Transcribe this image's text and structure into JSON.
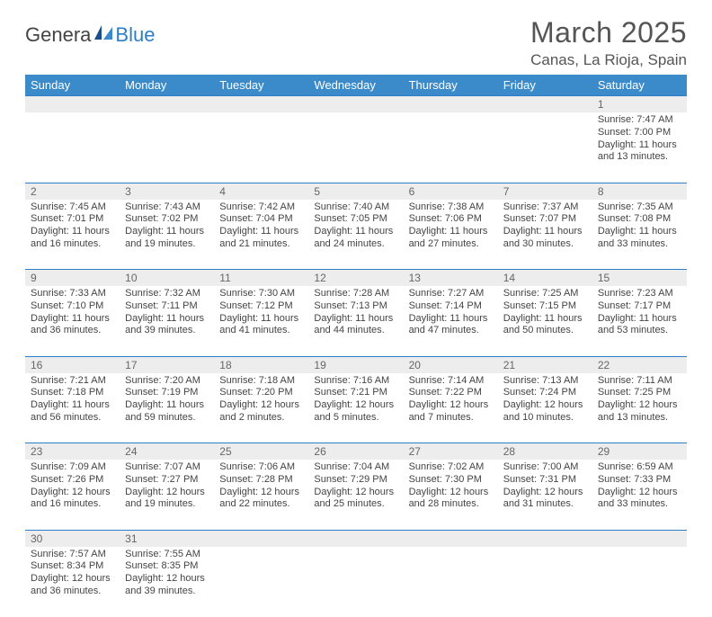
{
  "logo": {
    "part1": "Genera",
    "part2": "Blue"
  },
  "title": "March 2025",
  "subtitle": "Canas, La Rioja, Spain",
  "weekdays": [
    "Sunday",
    "Monday",
    "Tuesday",
    "Wednesday",
    "Thursday",
    "Friday",
    "Saturday"
  ],
  "colors": {
    "header_bg": "#3b8bca",
    "header_text": "#ffffff",
    "daynum_bg": "#ededed",
    "border": "#2d7ec4",
    "text": "#444444",
    "logo_blue": "#2d7ec4"
  },
  "weeks": [
    {
      "days": [
        {
          "num": "",
          "sunrise": "",
          "sunset": "",
          "daylight": ""
        },
        {
          "num": "",
          "sunrise": "",
          "sunset": "",
          "daylight": ""
        },
        {
          "num": "",
          "sunrise": "",
          "sunset": "",
          "daylight": ""
        },
        {
          "num": "",
          "sunrise": "",
          "sunset": "",
          "daylight": ""
        },
        {
          "num": "",
          "sunrise": "",
          "sunset": "",
          "daylight": ""
        },
        {
          "num": "",
          "sunrise": "",
          "sunset": "",
          "daylight": ""
        },
        {
          "num": "1",
          "sunrise": "Sunrise: 7:47 AM",
          "sunset": "Sunset: 7:00 PM",
          "daylight": "Daylight: 11 hours and 13 minutes."
        }
      ]
    },
    {
      "days": [
        {
          "num": "2",
          "sunrise": "Sunrise: 7:45 AM",
          "sunset": "Sunset: 7:01 PM",
          "daylight": "Daylight: 11 hours and 16 minutes."
        },
        {
          "num": "3",
          "sunrise": "Sunrise: 7:43 AM",
          "sunset": "Sunset: 7:02 PM",
          "daylight": "Daylight: 11 hours and 19 minutes."
        },
        {
          "num": "4",
          "sunrise": "Sunrise: 7:42 AM",
          "sunset": "Sunset: 7:04 PM",
          "daylight": "Daylight: 11 hours and 21 minutes."
        },
        {
          "num": "5",
          "sunrise": "Sunrise: 7:40 AM",
          "sunset": "Sunset: 7:05 PM",
          "daylight": "Daylight: 11 hours and 24 minutes."
        },
        {
          "num": "6",
          "sunrise": "Sunrise: 7:38 AM",
          "sunset": "Sunset: 7:06 PM",
          "daylight": "Daylight: 11 hours and 27 minutes."
        },
        {
          "num": "7",
          "sunrise": "Sunrise: 7:37 AM",
          "sunset": "Sunset: 7:07 PM",
          "daylight": "Daylight: 11 hours and 30 minutes."
        },
        {
          "num": "8",
          "sunrise": "Sunrise: 7:35 AM",
          "sunset": "Sunset: 7:08 PM",
          "daylight": "Daylight: 11 hours and 33 minutes."
        }
      ]
    },
    {
      "days": [
        {
          "num": "9",
          "sunrise": "Sunrise: 7:33 AM",
          "sunset": "Sunset: 7:10 PM",
          "daylight": "Daylight: 11 hours and 36 minutes."
        },
        {
          "num": "10",
          "sunrise": "Sunrise: 7:32 AM",
          "sunset": "Sunset: 7:11 PM",
          "daylight": "Daylight: 11 hours and 39 minutes."
        },
        {
          "num": "11",
          "sunrise": "Sunrise: 7:30 AM",
          "sunset": "Sunset: 7:12 PM",
          "daylight": "Daylight: 11 hours and 41 minutes."
        },
        {
          "num": "12",
          "sunrise": "Sunrise: 7:28 AM",
          "sunset": "Sunset: 7:13 PM",
          "daylight": "Daylight: 11 hours and 44 minutes."
        },
        {
          "num": "13",
          "sunrise": "Sunrise: 7:27 AM",
          "sunset": "Sunset: 7:14 PM",
          "daylight": "Daylight: 11 hours and 47 minutes."
        },
        {
          "num": "14",
          "sunrise": "Sunrise: 7:25 AM",
          "sunset": "Sunset: 7:15 PM",
          "daylight": "Daylight: 11 hours and 50 minutes."
        },
        {
          "num": "15",
          "sunrise": "Sunrise: 7:23 AM",
          "sunset": "Sunset: 7:17 PM",
          "daylight": "Daylight: 11 hours and 53 minutes."
        }
      ]
    },
    {
      "days": [
        {
          "num": "16",
          "sunrise": "Sunrise: 7:21 AM",
          "sunset": "Sunset: 7:18 PM",
          "daylight": "Daylight: 11 hours and 56 minutes."
        },
        {
          "num": "17",
          "sunrise": "Sunrise: 7:20 AM",
          "sunset": "Sunset: 7:19 PM",
          "daylight": "Daylight: 11 hours and 59 minutes."
        },
        {
          "num": "18",
          "sunrise": "Sunrise: 7:18 AM",
          "sunset": "Sunset: 7:20 PM",
          "daylight": "Daylight: 12 hours and 2 minutes."
        },
        {
          "num": "19",
          "sunrise": "Sunrise: 7:16 AM",
          "sunset": "Sunset: 7:21 PM",
          "daylight": "Daylight: 12 hours and 5 minutes."
        },
        {
          "num": "20",
          "sunrise": "Sunrise: 7:14 AM",
          "sunset": "Sunset: 7:22 PM",
          "daylight": "Daylight: 12 hours and 7 minutes."
        },
        {
          "num": "21",
          "sunrise": "Sunrise: 7:13 AM",
          "sunset": "Sunset: 7:24 PM",
          "daylight": "Daylight: 12 hours and 10 minutes."
        },
        {
          "num": "22",
          "sunrise": "Sunrise: 7:11 AM",
          "sunset": "Sunset: 7:25 PM",
          "daylight": "Daylight: 12 hours and 13 minutes."
        }
      ]
    },
    {
      "days": [
        {
          "num": "23",
          "sunrise": "Sunrise: 7:09 AM",
          "sunset": "Sunset: 7:26 PM",
          "daylight": "Daylight: 12 hours and 16 minutes."
        },
        {
          "num": "24",
          "sunrise": "Sunrise: 7:07 AM",
          "sunset": "Sunset: 7:27 PM",
          "daylight": "Daylight: 12 hours and 19 minutes."
        },
        {
          "num": "25",
          "sunrise": "Sunrise: 7:06 AM",
          "sunset": "Sunset: 7:28 PM",
          "daylight": "Daylight: 12 hours and 22 minutes."
        },
        {
          "num": "26",
          "sunrise": "Sunrise: 7:04 AM",
          "sunset": "Sunset: 7:29 PM",
          "daylight": "Daylight: 12 hours and 25 minutes."
        },
        {
          "num": "27",
          "sunrise": "Sunrise: 7:02 AM",
          "sunset": "Sunset: 7:30 PM",
          "daylight": "Daylight: 12 hours and 28 minutes."
        },
        {
          "num": "28",
          "sunrise": "Sunrise: 7:00 AM",
          "sunset": "Sunset: 7:31 PM",
          "daylight": "Daylight: 12 hours and 31 minutes."
        },
        {
          "num": "29",
          "sunrise": "Sunrise: 6:59 AM",
          "sunset": "Sunset: 7:33 PM",
          "daylight": "Daylight: 12 hours and 33 minutes."
        }
      ]
    },
    {
      "days": [
        {
          "num": "30",
          "sunrise": "Sunrise: 7:57 AM",
          "sunset": "Sunset: 8:34 PM",
          "daylight": "Daylight: 12 hours and 36 minutes."
        },
        {
          "num": "31",
          "sunrise": "Sunrise: 7:55 AM",
          "sunset": "Sunset: 8:35 PM",
          "daylight": "Daylight: 12 hours and 39 minutes."
        },
        {
          "num": "",
          "sunrise": "",
          "sunset": "",
          "daylight": ""
        },
        {
          "num": "",
          "sunrise": "",
          "sunset": "",
          "daylight": ""
        },
        {
          "num": "",
          "sunrise": "",
          "sunset": "",
          "daylight": ""
        },
        {
          "num": "",
          "sunrise": "",
          "sunset": "",
          "daylight": ""
        },
        {
          "num": "",
          "sunrise": "",
          "sunset": "",
          "daylight": ""
        }
      ]
    }
  ]
}
